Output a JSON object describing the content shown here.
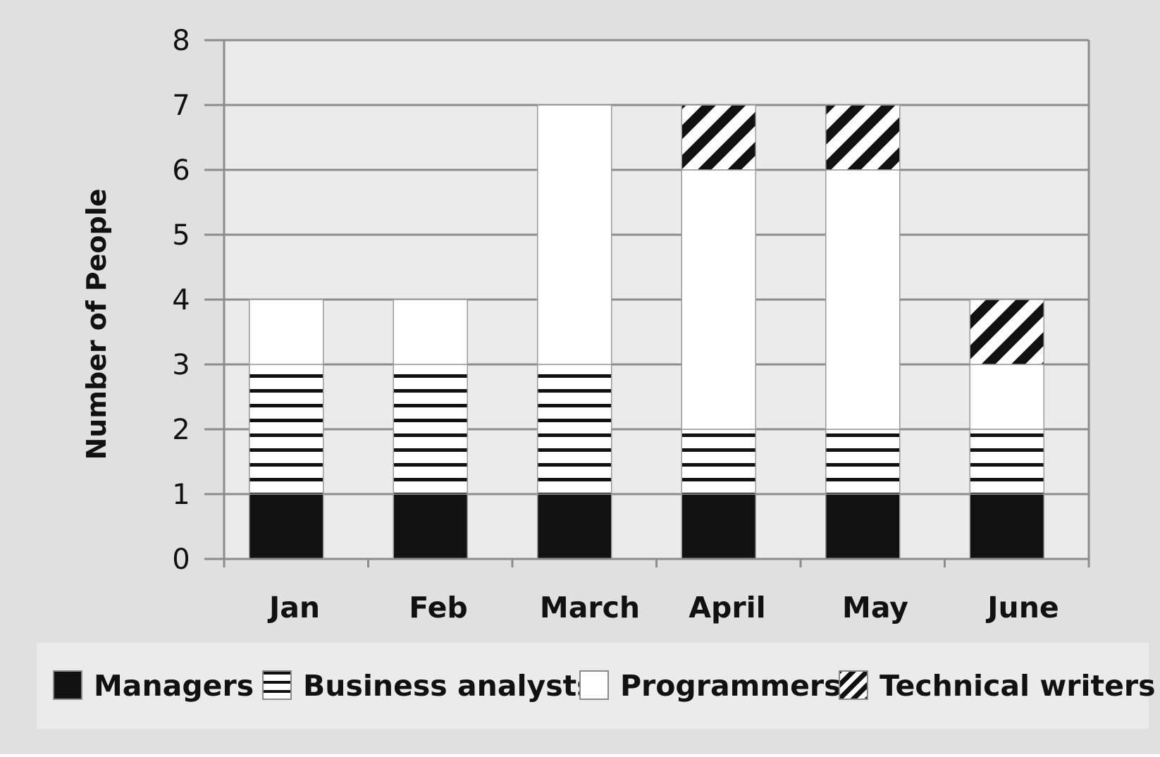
{
  "chart_data": {
    "type": "bar",
    "stacked": true,
    "categories": [
      "Jan",
      "Feb",
      "March",
      "April",
      "May",
      "June"
    ],
    "series": [
      {
        "name": "Managers",
        "values": [
          1,
          1,
          1,
          1,
          1,
          1
        ],
        "pattern": "solid-black"
      },
      {
        "name": "Business analysts",
        "values": [
          2,
          2,
          2,
          1,
          1,
          1
        ],
        "pattern": "horizontal-stripes"
      },
      {
        "name": "Programmers",
        "values": [
          1,
          1,
          4,
          4,
          4,
          1
        ],
        "pattern": "solid-white"
      },
      {
        "name": "Technical writers",
        "values": [
          0,
          0,
          0,
          1,
          1,
          1
        ],
        "pattern": "diagonal-stripes"
      }
    ],
    "title": "",
    "xlabel": "",
    "ylabel": "Number of People",
    "ylim": [
      0,
      8
    ],
    "yticks": [
      0,
      1,
      2,
      3,
      4,
      5,
      6,
      7,
      8
    ],
    "grid": true,
    "legend_position": "bottom"
  },
  "colors": {
    "page_background": "#e0e0e0",
    "plot_background": "#ebebeb",
    "legend_background": "#ebebeb",
    "gridline": "#8c8c8c",
    "ink": "#111111",
    "white": "#ffffff"
  }
}
